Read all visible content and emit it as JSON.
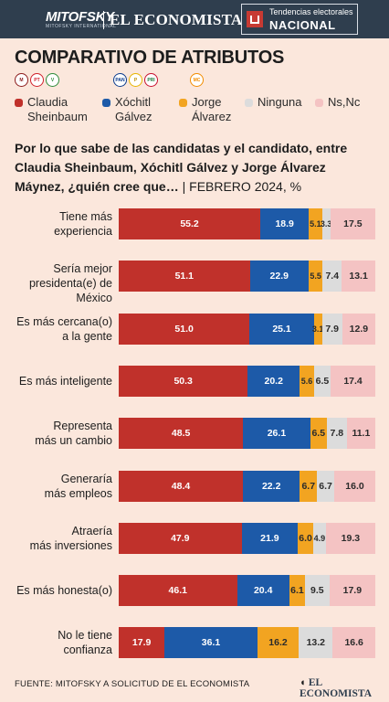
{
  "header": {
    "brand_left": "MITOFSKY",
    "brand_left_sub": "MITOFSKY INTERNATIONAL",
    "brand_main": "EL ECONOMISTA",
    "section_sub": "Tendencias electorales",
    "section_main": "NACIONAL"
  },
  "footer": {
    "source": "FUENTE: MITOFSKY A SOLICITUD DE EL ECONOMISTA",
    "brand": "EL ECONOMISTA"
  },
  "colors": {
    "sheinbaum": "#c0312b",
    "galvez": "#1d5aa8",
    "alvarez": "#f2a421",
    "ninguna": "#dcdcdc",
    "nsnc": "#f4c3c3",
    "background": "#fbe7dc"
  },
  "chart_data": {
    "type": "bar",
    "orientation": "horizontal",
    "stacked": true,
    "title": "COMPARATIVO DE ATRIBUTOS",
    "subtitle": "Por lo que sabe de las candidatas y el candidato, entre Claudia Sheinbaum, Xóchitl Gálvez y Jorge Álvarez Máynez, ¿quién cree que…",
    "date_note": "| FEBRERO 2024, %",
    "legend_placement": "top",
    "legend": [
      {
        "name": "Claudia Sheinbaum",
        "line1": "Claudia",
        "line2": "Sheinbaum",
        "color": "#c0312b",
        "party_icons": [
          "morena-icon",
          "pt-icon",
          "pvem-icon"
        ]
      },
      {
        "name": "Xóchitl Gálvez",
        "line1": "Xóchitl",
        "line2": "Gálvez",
        "color": "#1d5aa8",
        "party_icons": [
          "pan-icon",
          "prd-icon",
          "pri-icon"
        ]
      },
      {
        "name": "Jorge Álvarez",
        "line1": "Jorge",
        "line2": "Álvarez",
        "color": "#f2a421",
        "party_icons": [
          "mc-icon"
        ]
      },
      {
        "name": "Ninguna",
        "line1": "Ninguna",
        "line2": "",
        "color": "#dcdcdc",
        "party_icons": []
      },
      {
        "name": "Ns,Nc",
        "line1": "Ns,Nc",
        "line2": "",
        "color": "#f4c3c3",
        "party_icons": []
      }
    ],
    "categories": [
      [
        "Tiene más",
        "experiencia"
      ],
      [
        "Sería mejor",
        "presidenta(e) de México"
      ],
      [
        "Es más cercana(o)",
        "a la gente"
      ],
      [
        "Es más inteligente"
      ],
      [
        "Representa",
        "más un cambio"
      ],
      [
        "Generaría",
        "más empleos"
      ],
      [
        "Atraería",
        "más inversiones"
      ],
      [
        "Es más honesta(o)"
      ],
      [
        "No le tiene",
        "confianza"
      ]
    ],
    "series": [
      {
        "name": "Claudia Sheinbaum",
        "values": [
          55.2,
          51.1,
          51.0,
          50.3,
          48.5,
          48.4,
          47.9,
          46.1,
          17.9
        ]
      },
      {
        "name": "Xóchitl Gálvez",
        "values": [
          18.9,
          22.9,
          25.1,
          20.2,
          26.1,
          22.2,
          21.9,
          20.4,
          36.1
        ]
      },
      {
        "name": "Jorge Álvarez",
        "values": [
          5.1,
          5.5,
          3.1,
          5.6,
          6.5,
          6.7,
          6.0,
          6.1,
          16.2
        ]
      },
      {
        "name": "Ninguna",
        "values": [
          3.3,
          7.4,
          7.9,
          6.5,
          7.8,
          6.7,
          4.9,
          9.5,
          13.2
        ]
      },
      {
        "name": "Ns,Nc",
        "values": [
          17.5,
          13.1,
          12.9,
          17.4,
          11.1,
          16.0,
          19.3,
          17.9,
          16.6
        ]
      }
    ],
    "value_labels": [
      [
        "55.2",
        "18.9",
        "5.1",
        "3.3",
        "17.5"
      ],
      [
        "51.1",
        "22.9",
        "5.5",
        "7.4",
        "13.1"
      ],
      [
        "51.0",
        "25.1",
        "3.1",
        "7.9",
        "12.9"
      ],
      [
        "50.3",
        "20.2",
        "5.6",
        "6.5",
        "17.4"
      ],
      [
        "48.5",
        "26.1",
        "6.5",
        "7.8",
        "11.1"
      ],
      [
        "48.4",
        "22.2",
        "6.7",
        "6.7",
        "16.0"
      ],
      [
        "47.9",
        "21.9",
        "6.0",
        "4.9",
        "19.3"
      ],
      [
        "46.1",
        "20.4",
        "6.1",
        "9.5",
        "17.9"
      ],
      [
        "17.9",
        "36.1",
        "16.2",
        "13.2",
        "16.6"
      ]
    ],
    "xlim": [
      0,
      100
    ],
    "grid": false
  }
}
